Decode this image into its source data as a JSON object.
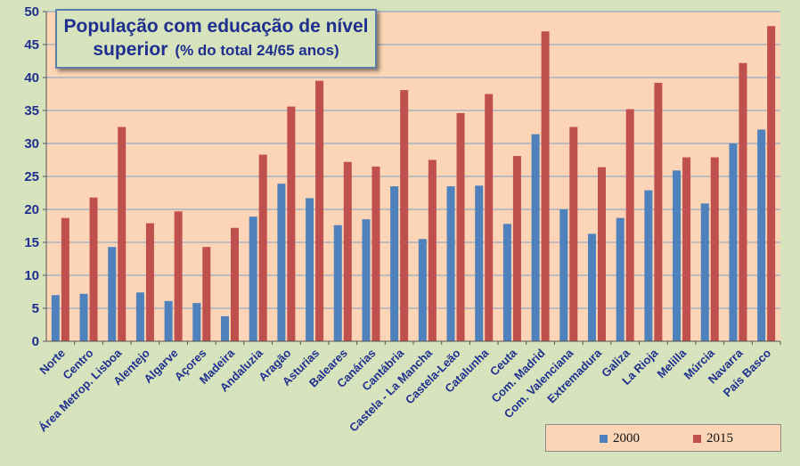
{
  "chart_data": {
    "type": "bar",
    "title_line1": "População com educação de nível",
    "title_line2": "superior",
    "title_sub": "(% do total 24/65 anos)",
    "ylim": [
      0,
      50
    ],
    "yticks": [
      0,
      5,
      10,
      15,
      20,
      25,
      30,
      35,
      40,
      45,
      50
    ],
    "grid": true,
    "legend_position": "bottom-right",
    "categories": [
      "Norte",
      "Centro",
      "Área Metrop. Lisboa",
      "Alentejo",
      "Algarve",
      "Açores",
      "Madeira",
      "Andaluzia",
      "Aragão",
      "Asturias",
      "Baleares",
      "Canárias",
      "Cantábria",
      "Castela - La Mancha",
      "Castela-Leão",
      "Catalunha",
      "Ceuta",
      "Com. Madrid",
      "Com. Valenciana",
      "Extremadura",
      "Galiza",
      "La Rioja",
      "Melilla",
      "Múrcia",
      "Navarra",
      "País Basco"
    ],
    "series": [
      {
        "name": "2000",
        "color": "#4f81bd",
        "values": [
          7.0,
          7.2,
          14.3,
          7.4,
          6.1,
          5.8,
          3.8,
          18.9,
          23.9,
          21.7,
          17.6,
          18.5,
          23.5,
          15.5,
          23.5,
          23.6,
          17.8,
          31.4,
          20.0,
          16.3,
          18.7,
          22.9,
          25.9,
          20.9,
          30.0,
          32.1
        ]
      },
      {
        "name": "2015",
        "color": "#c0504d",
        "values": [
          18.7,
          21.8,
          32.5,
          17.9,
          19.7,
          14.3,
          17.2,
          28.3,
          35.6,
          39.5,
          27.2,
          26.5,
          38.1,
          27.5,
          34.6,
          37.5,
          28.1,
          47.0,
          32.5,
          26.4,
          35.2,
          39.2,
          27.9,
          27.9,
          42.2,
          47.8
        ]
      }
    ]
  }
}
